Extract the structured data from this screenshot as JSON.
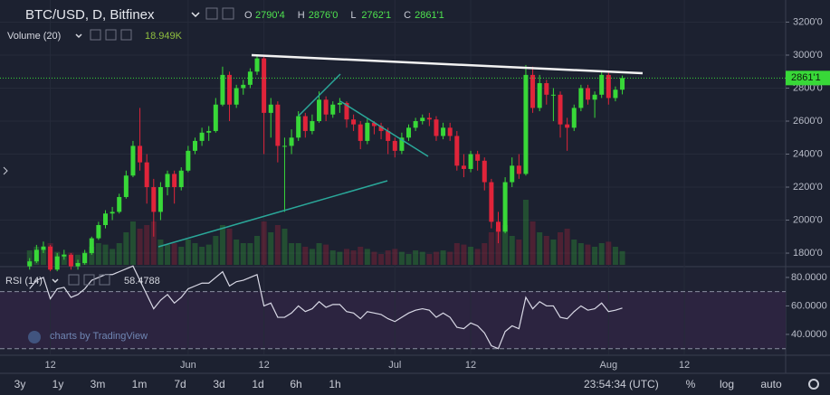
{
  "chart_data": [
    {
      "type": "candlestick",
      "title": "BTC/USD, D, Bitfinex",
      "legend_values": [
        {
          "name": "O",
          "label": "2790'4"
        },
        {
          "name": "H",
          "label": "2876'0"
        },
        {
          "name": "L",
          "label": "2762'1"
        },
        {
          "name": "C",
          "label": "2861'1"
        }
      ],
      "open": [
        1720,
        1750,
        1820,
        1840,
        1700,
        1780,
        1790,
        1720,
        1740,
        1800,
        1890,
        1970,
        2040,
        2050,
        2140,
        2270,
        2450,
        2350,
        2200,
        2050,
        2200,
        2280,
        2200,
        2300,
        2420,
        2480,
        2530,
        2540,
        2700,
        2880,
        2700,
        2800,
        2820,
        2900,
        2980,
        2650,
        2700,
        2450,
        2450,
        2500,
        2630,
        2540,
        2600,
        2730,
        2640,
        2700,
        2710,
        2610,
        2580,
        2480,
        2590,
        2570,
        2540,
        2480,
        2420,
        2500,
        2560,
        2600,
        2620,
        2610,
        2510,
        2560,
        2510,
        2330,
        2310,
        2400,
        2360,
        2230,
        1990,
        1930,
        2230,
        2330,
        2280,
        2880,
        2680,
        2830,
        2760,
        2760,
        2580,
        2560,
        2680,
        2800,
        2730,
        2760,
        2880,
        2740,
        2790.4
      ],
      "high": [
        1770,
        1850,
        1870,
        1850,
        1800,
        1820,
        1800,
        1760,
        1820,
        1900,
        1990,
        2060,
        2080,
        2160,
        2300,
        2480,
        2680,
        2400,
        2250,
        2230,
        2300,
        2300,
        2320,
        2450,
        2500,
        2560,
        2570,
        2740,
        2930,
        2900,
        2820,
        2850,
        2920,
        3000,
        2990,
        2740,
        2720,
        2500,
        2550,
        2660,
        2650,
        2640,
        2780,
        2750,
        2720,
        2740,
        2720,
        2640,
        2600,
        2620,
        2600,
        2590,
        2560,
        2500,
        2530,
        2580,
        2620,
        2640,
        2650,
        2630,
        2590,
        2590,
        2540,
        2400,
        2420,
        2420,
        2380,
        2250,
        2050,
        2260,
        2380,
        2400,
        2940,
        2930,
        2880,
        2850,
        2800,
        2780,
        2620,
        2700,
        2820,
        2820,
        2780,
        2900,
        2900,
        2810,
        2876
      ],
      "low": [
        1700,
        1740,
        1800,
        1690,
        1690,
        1760,
        1700,
        1700,
        1730,
        1790,
        1880,
        1950,
        2000,
        2040,
        2130,
        2260,
        2300,
        2100,
        1900,
        2000,
        2150,
        2100,
        2180,
        2290,
        2400,
        2450,
        2480,
        2530,
        2690,
        2600,
        2680,
        2760,
        2800,
        2880,
        2400,
        2500,
        2350,
        2050,
        2400,
        2480,
        2500,
        2520,
        2590,
        2600,
        2620,
        2650,
        2560,
        2540,
        2430,
        2460,
        2520,
        2490,
        2400,
        2380,
        2400,
        2480,
        2540,
        2580,
        2570,
        2480,
        2490,
        2480,
        2300,
        2260,
        2290,
        2300,
        2180,
        1950,
        1860,
        1920,
        2200,
        2250,
        2270,
        2650,
        2660,
        2700,
        2600,
        2500,
        2420,
        2540,
        2660,
        2700,
        2620,
        2740,
        2700,
        2720,
        2762.1
      ],
      "close": [
        1750,
        1820,
        1840,
        1700,
        1780,
        1790,
        1720,
        1740,
        1800,
        1890,
        1970,
        2040,
        2050,
        2140,
        2270,
        2450,
        2350,
        2200,
        2050,
        2200,
        2280,
        2200,
        2300,
        2420,
        2480,
        2530,
        2540,
        2700,
        2880,
        2700,
        2800,
        2820,
        2900,
        2980,
        2650,
        2700,
        2450,
        2450,
        2500,
        2630,
        2540,
        2600,
        2730,
        2640,
        2700,
        2710,
        2610,
        2580,
        2480,
        2590,
        2570,
        2540,
        2480,
        2420,
        2500,
        2560,
        2600,
        2620,
        2610,
        2510,
        2560,
        2510,
        2330,
        2310,
        2400,
        2360,
        2230,
        1990,
        1930,
        2230,
        2330,
        2280,
        2880,
        2680,
        2830,
        2760,
        2760,
        2580,
        2560,
        2680,
        2800,
        2730,
        2760,
        2880,
        2740,
        2790.4,
        2861.1
      ],
      "color_up": "#38d838",
      "color_down": "#e0243a",
      "xlim": [
        -4.3,
        109.7
      ],
      "xticks": [
        {
          "value": 3,
          "label": "12"
        },
        {
          "value": 23,
          "label": "Jun"
        },
        {
          "value": 34,
          "label": "12"
        },
        {
          "value": 53,
          "label": "Jul"
        },
        {
          "value": 64,
          "label": "12"
        },
        {
          "value": 84,
          "label": "Aug"
        },
        {
          "value": 95,
          "label": "12"
        }
      ],
      "ylim": [
        1729,
        3334
      ],
      "yticks": [
        {
          "value": 1800,
          "label": "1800'0"
        },
        {
          "value": 2000,
          "label": "2000'0"
        },
        {
          "value": 2200,
          "label": "2200'0"
        },
        {
          "value": 2400,
          "label": "2400'0"
        },
        {
          "value": 2600,
          "label": "2600'0"
        },
        {
          "value": 2800,
          "label": "2800'0"
        },
        {
          "value": 3000,
          "label": "3000'0"
        },
        {
          "value": 3200,
          "label": "3200'0"
        }
      ],
      "last_price": {
        "value": 2861.1,
        "label": "2861'1"
      },
      "volume": {
        "name": "Volume (20)",
        "last_label": "18.949K",
        "values": [
          20,
          25,
          22,
          30,
          18,
          15,
          17,
          14,
          18,
          25,
          30,
          28,
          22,
          30,
          45,
          60,
          50,
          55,
          60,
          35,
          28,
          30,
          25,
          35,
          30,
          25,
          28,
          40,
          55,
          50,
          35,
          30,
          30,
          40,
          60,
          45,
          55,
          50,
          30,
          30,
          25,
          22,
          30,
          28,
          20,
          18,
          22,
          20,
          25,
          22,
          18,
          15,
          20,
          22,
          18,
          15,
          20,
          18,
          15,
          18,
          20,
          18,
          30,
          28,
          25,
          22,
          30,
          45,
          50,
          55,
          40,
          35,
          90,
          60,
          45,
          40,
          35,
          45,
          50,
          35,
          30,
          28,
          25,
          30,
          32,
          25,
          18.949
        ]
      }
    },
    {
      "type": "line",
      "name": "RSI (14)",
      "value_label": "58.4788",
      "color": "#d9d9e6",
      "values": [
        72,
        78,
        80,
        65,
        72,
        73,
        66,
        68,
        72,
        78,
        80,
        82,
        82,
        84,
        86,
        88,
        78,
        68,
        58,
        64,
        68,
        62,
        66,
        72,
        74,
        76,
        76,
        80,
        84,
        74,
        77,
        78,
        80,
        82,
        60,
        62,
        52,
        52,
        55,
        60,
        56,
        58,
        63,
        59,
        61,
        61,
        56,
        55,
        51,
        56,
        55,
        54,
        51,
        49,
        52,
        55,
        57,
        58,
        57,
        52,
        55,
        52,
        45,
        44,
        48,
        46,
        41,
        32,
        30,
        42,
        46,
        44,
        66,
        58,
        63,
        60,
        60,
        52,
        51,
        56,
        60,
        57,
        58,
        62,
        56,
        57,
        58.4788
      ],
      "ylim": [
        26,
        86.3
      ],
      "yticks": [
        {
          "value": 40,
          "label": "40.0000"
        },
        {
          "value": 60,
          "label": "60.0000"
        },
        {
          "value": 80,
          "label": "80.0000"
        }
      ],
      "bands": [
        30,
        70
      ]
    }
  ],
  "watermark": "charts by TradingView",
  "toolbar": {
    "ranges": [
      "3y",
      "1y",
      "3m",
      "1m",
      "7d",
      "3d",
      "1d",
      "6h",
      "1h"
    ],
    "clock": "23:54:34 (UTC)",
    "options": [
      "%",
      "log",
      "auto"
    ]
  }
}
